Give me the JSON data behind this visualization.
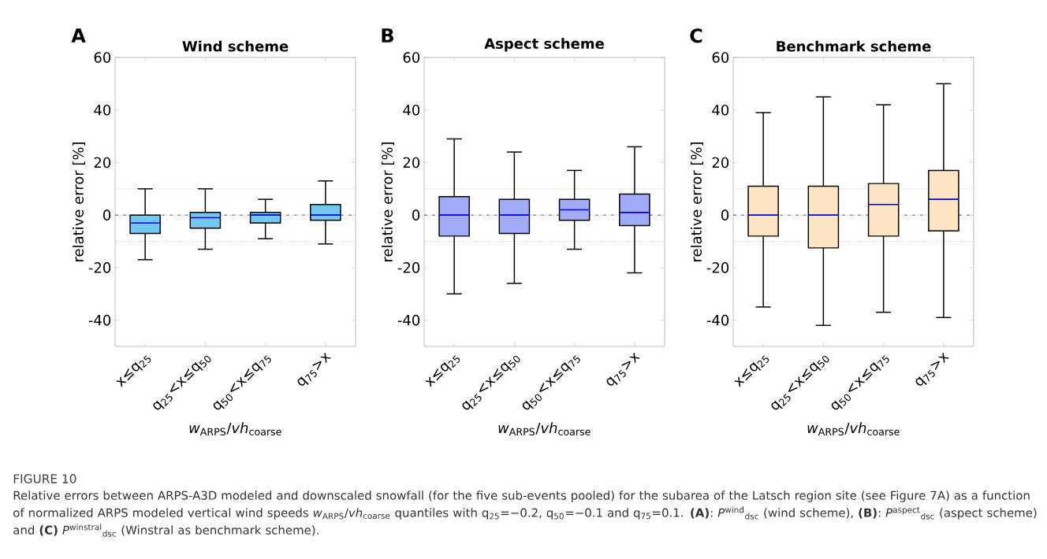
{
  "chart_data": [
    {
      "type": "box",
      "title": "Wind scheme",
      "xlabel": "*w*$_{ARPS}$/*vh*$_{coarse}$",
      "ylabel": "relative error [%]",
      "categories": [
        "x≤q$_{25}$",
        "q$_{25}$<x≤q$_{50}$",
        "q$_{50}$<x≤q$_{75}$",
        "q$_{75}$>x"
      ],
      "ylim": [
        -50,
        60
      ],
      "yticks": [
        -40,
        -20,
        0,
        20,
        40,
        60
      ],
      "grid": false,
      "series": [
        {
          "color": "#72c8f0",
          "boxes": [
            {
              "low": -17,
              "q1": -7,
              "median": -3,
              "q3": 0,
              "high": 10
            },
            {
              "low": -13,
              "q1": -5,
              "median": -1,
              "q3": 1,
              "high": 10
            },
            {
              "low": -9,
              "q1": -3,
              "median": 0,
              "q3": 1,
              "high": 6
            },
            {
              "low": -11,
              "q1": -2,
              "median": 0,
              "q3": 4,
              "high": 13
            }
          ]
        }
      ],
      "ref_lines": [
        {
          "axis": "y",
          "value": 0,
          "color": "#333333",
          "line_style": "dashed"
        },
        {
          "axis": "y",
          "value": 10,
          "color": "#bbbbbb",
          "line_style": "dotted"
        },
        {
          "axis": "y",
          "value": -10,
          "color": "#bbbbbb",
          "line_style": "dotted"
        }
      ],
      "annotations": [
        "A",
        "FIGURE 10",
        "Relative errors between ARPS-A3D modeled and downscaled snowfall (for the five sub-events pooled) for the subarea of the Latsch region site (see Figure 7A) as a function of normalized ARPS modeled vertical wind speeds *w*$_{ARPS}$/*vh*$_{coarse}$ quantiles with q$_{25}$=−0.2, q$_{50}$=−0.1 and q$_{75}$=0.1. **(A)**: *P*$^{wind}$$_{dsc}$ (wind scheme), **(B)**: *P*$^{aspect}$$_{dsc}$ (aspect scheme) and **(C)** *P*$^{winstral}$$_{dsc}$ (Winstral as benchmark scheme)."
      ]
    },
    {
      "type": "box",
      "title": "Aspect scheme",
      "xlabel": "*w*$_{ARPS}$/*vh*$_{coarse}$",
      "ylabel": "relative error [%]",
      "categories": [
        "x≤q$_{25}$",
        "q$_{25}$<x≤q$_{50}$",
        "q$_{50}$<x≤q$_{75}$",
        "q$_{75}$>x"
      ],
      "ylim": [
        -50,
        60
      ],
      "yticks": [
        -40,
        -20,
        0,
        20,
        40,
        60
      ],
      "grid": false,
      "series": [
        {
          "color": "#a0acf8",
          "boxes": [
            {
              "low": -30,
              "q1": -8,
              "median": 0,
              "q3": 7,
              "high": 29
            },
            {
              "low": -26,
              "q1": -7,
              "median": 0,
              "q3": 6,
              "high": 24
            },
            {
              "low": -13,
              "q1": -2,
              "median": 2,
              "q3": 6,
              "high": 17
            },
            {
              "low": -22,
              "q1": -4,
              "median": 1,
              "q3": 8,
              "high": 26
            }
          ]
        }
      ],
      "ref_lines": [
        {
          "axis": "y",
          "value": 0,
          "color": "#333333",
          "line_style": "dashed"
        },
        {
          "axis": "y",
          "value": 10,
          "color": "#bbbbbb",
          "line_style": "dotted"
        },
        {
          "axis": "y",
          "value": -10,
          "color": "#bbbbbb",
          "line_style": "dotted"
        }
      ],
      "annotations": [
        "B"
      ]
    },
    {
      "type": "box",
      "title": "Benchmark scheme",
      "xlabel": "*w*$_{ARPS}$/*vh*$_{coarse}$",
      "ylabel": "relative error [%]",
      "categories": [
        "x≤q$_{25}$",
        "q$_{25}$<x≤q$_{50}$",
        "q$_{50}$<x≤q$_{75}$",
        "q$_{75}$>x"
      ],
      "ylim": [
        -50,
        60
      ],
      "yticks": [
        -40,
        -20,
        0,
        20,
        40,
        60
      ],
      "grid": false,
      "series": [
        {
          "color": "#fde4c2",
          "boxes": [
            {
              "low": -35,
              "q1": -8,
              "median": 0,
              "q3": 11,
              "high": 39
            },
            {
              "low": -42,
              "q1": -12.5,
              "median": 0,
              "q3": 11,
              "high": 45
            },
            {
              "low": -37,
              "q1": -8,
              "median": 4,
              "q3": 12,
              "high": 42
            },
            {
              "low": -39,
              "q1": -6,
              "median": 6,
              "q3": 17,
              "high": 50
            }
          ]
        }
      ],
      "ref_lines": [
        {
          "axis": "y",
          "value": 0,
          "color": "#333333",
          "line_style": "dashed"
        },
        {
          "axis": "y",
          "value": 10,
          "color": "#bbbbbb",
          "line_style": "dotted"
        },
        {
          "axis": "y",
          "value": -10,
          "color": "#bbbbbb",
          "line_style": "dotted"
        }
      ],
      "annotations": [
        "C"
      ]
    }
  ]
}
